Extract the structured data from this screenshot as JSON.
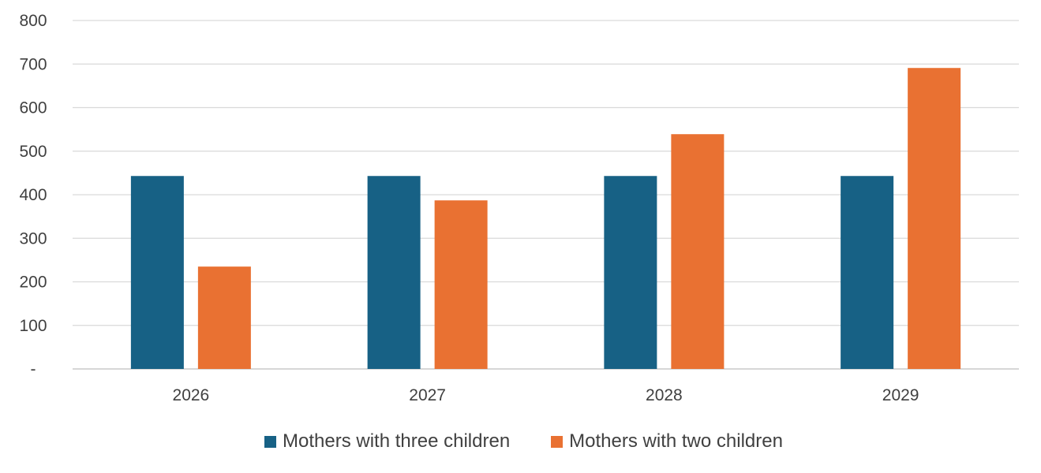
{
  "chart_data": {
    "type": "bar",
    "title": "",
    "xlabel": "",
    "ylabel": "",
    "categories": [
      "2026",
      "2027",
      "2028",
      "2029"
    ],
    "series": [
      {
        "name": "Mothers with three children",
        "color": "#176185",
        "values": [
          443,
          443,
          443,
          443
        ]
      },
      {
        "name": "Mothers with two children",
        "color": "#E97132",
        "values": [
          235,
          387,
          539,
          691
        ]
      }
    ],
    "ylim": [
      0,
      800
    ],
    "y_ticks": [
      {
        "value": 0,
        "label": "-"
      },
      {
        "value": 100,
        "label": "100"
      },
      {
        "value": 200,
        "label": "200"
      },
      {
        "value": 300,
        "label": "300"
      },
      {
        "value": 400,
        "label": "400"
      },
      {
        "value": 500,
        "label": "500"
      },
      {
        "value": 600,
        "label": "600"
      },
      {
        "value": 700,
        "label": "700"
      },
      {
        "value": 800,
        "label": "800"
      }
    ],
    "grid": true,
    "legend_position": "bottom",
    "gridline_color": "#d9d9d9",
    "text_color": "#404040"
  }
}
